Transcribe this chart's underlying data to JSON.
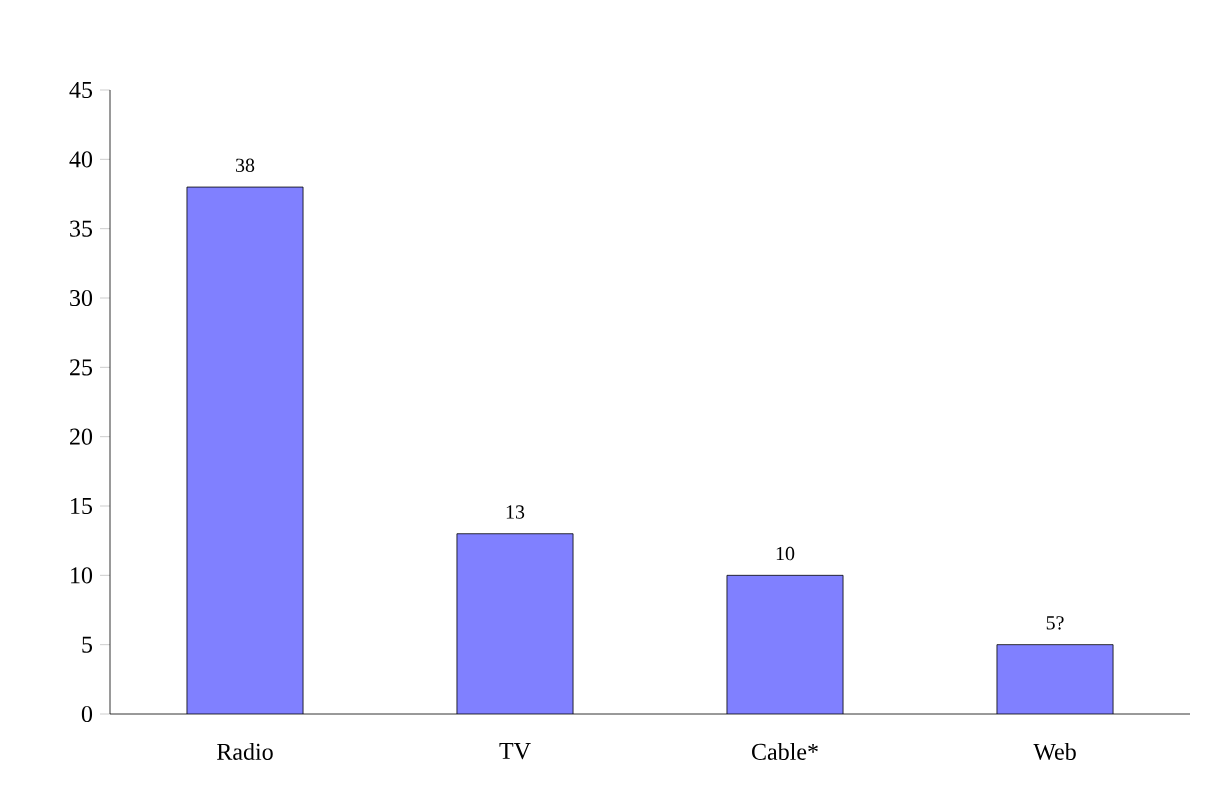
{
  "chart_data": {
    "type": "bar",
    "categories": [
      "Radio",
      "TV",
      "Cable*",
      "Web"
    ],
    "values": [
      38,
      13,
      10,
      5
    ],
    "value_labels": [
      "38",
      "13",
      "10",
      "5?"
    ],
    "color": "#8080ff",
    "ylim": [
      0,
      45
    ],
    "yticks": [
      0,
      5,
      10,
      15,
      20,
      25,
      30,
      35,
      40,
      45
    ],
    "grid": false
  }
}
